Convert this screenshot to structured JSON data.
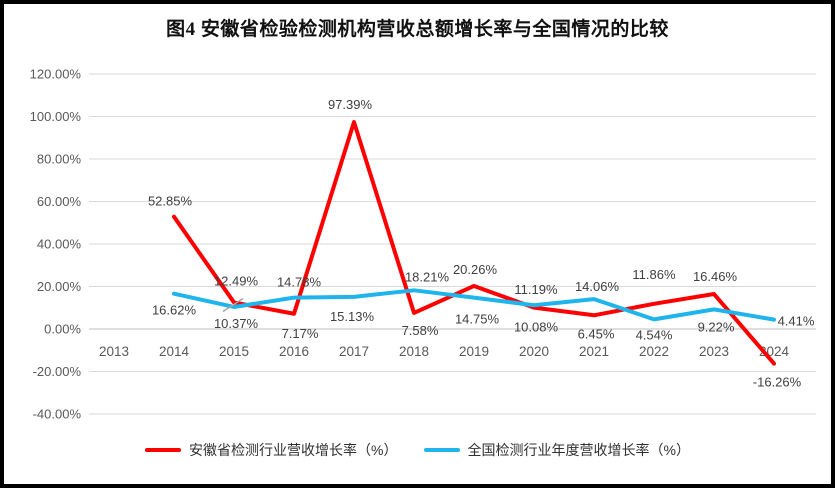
{
  "chart_data": {
    "type": "line",
    "title": "图4 安徽省检验检测机构营收总额增长率与全国情况的比较",
    "categories": [
      "2013",
      "2014",
      "2015",
      "2016",
      "2017",
      "2018",
      "2019",
      "2020",
      "2021",
      "2022",
      "2023",
      "2024"
    ],
    "series": [
      {
        "name": "安徽省检测行业营收增长率（%）",
        "color": "#FE0000",
        "values": [
          null,
          52.85,
          12.49,
          7.17,
          97.39,
          7.58,
          20.26,
          10.08,
          6.45,
          11.86,
          16.46,
          -16.26
        ],
        "label_offsets": [
          null,
          [
            -4,
            -11
          ],
          [
            2,
            -17
          ],
          [
            6,
            24
          ],
          [
            -4,
            -13
          ],
          [
            6,
            22
          ],
          [
            1,
            -12
          ],
          [
            2,
            24
          ],
          [
            2,
            23
          ],
          [
            0,
            -25
          ],
          [
            1,
            -13
          ],
          [
            3,
            23
          ]
        ],
        "leader": {
          "index": 2,
          "from": [
            -11,
            9
          ],
          "to": [
            9,
            -4
          ]
        }
      },
      {
        "name": "全国检测行业年度营收增长率（%）",
        "color": "#1FB5EC",
        "values": [
          null,
          16.62,
          10.37,
          14.78,
          15.13,
          18.21,
          14.75,
          11.19,
          14.06,
          4.54,
          9.22,
          4.41
        ],
        "label_offsets": [
          null,
          [
            0,
            21
          ],
          [
            2,
            21
          ],
          [
            5,
            -11
          ],
          [
            -2,
            24
          ],
          [
            13,
            -9
          ],
          [
            3,
            26
          ],
          [
            2,
            -11
          ],
          [
            3,
            -8
          ],
          [
            0,
            20
          ],
          [
            2,
            22
          ],
          [
            22,
            6
          ]
        ],
        "leader": null
      }
    ],
    "ylim": [
      -40,
      120
    ],
    "ytick_step": 20,
    "ytick_labels": [
      "-40.00%",
      "-20.00%",
      "0.00%",
      "20.00%",
      "40.00%",
      "60.00%",
      "80.00%",
      "100.00%",
      "120.00%"
    ],
    "grid": true,
    "legend_position": "bottom",
    "colors": {
      "gridline": "#D9D9D9",
      "zero_line": "#BFBFBF",
      "axis_text": "#595959",
      "data_label": "#3F3F3F",
      "leader_line": "#A6A6A6"
    }
  }
}
